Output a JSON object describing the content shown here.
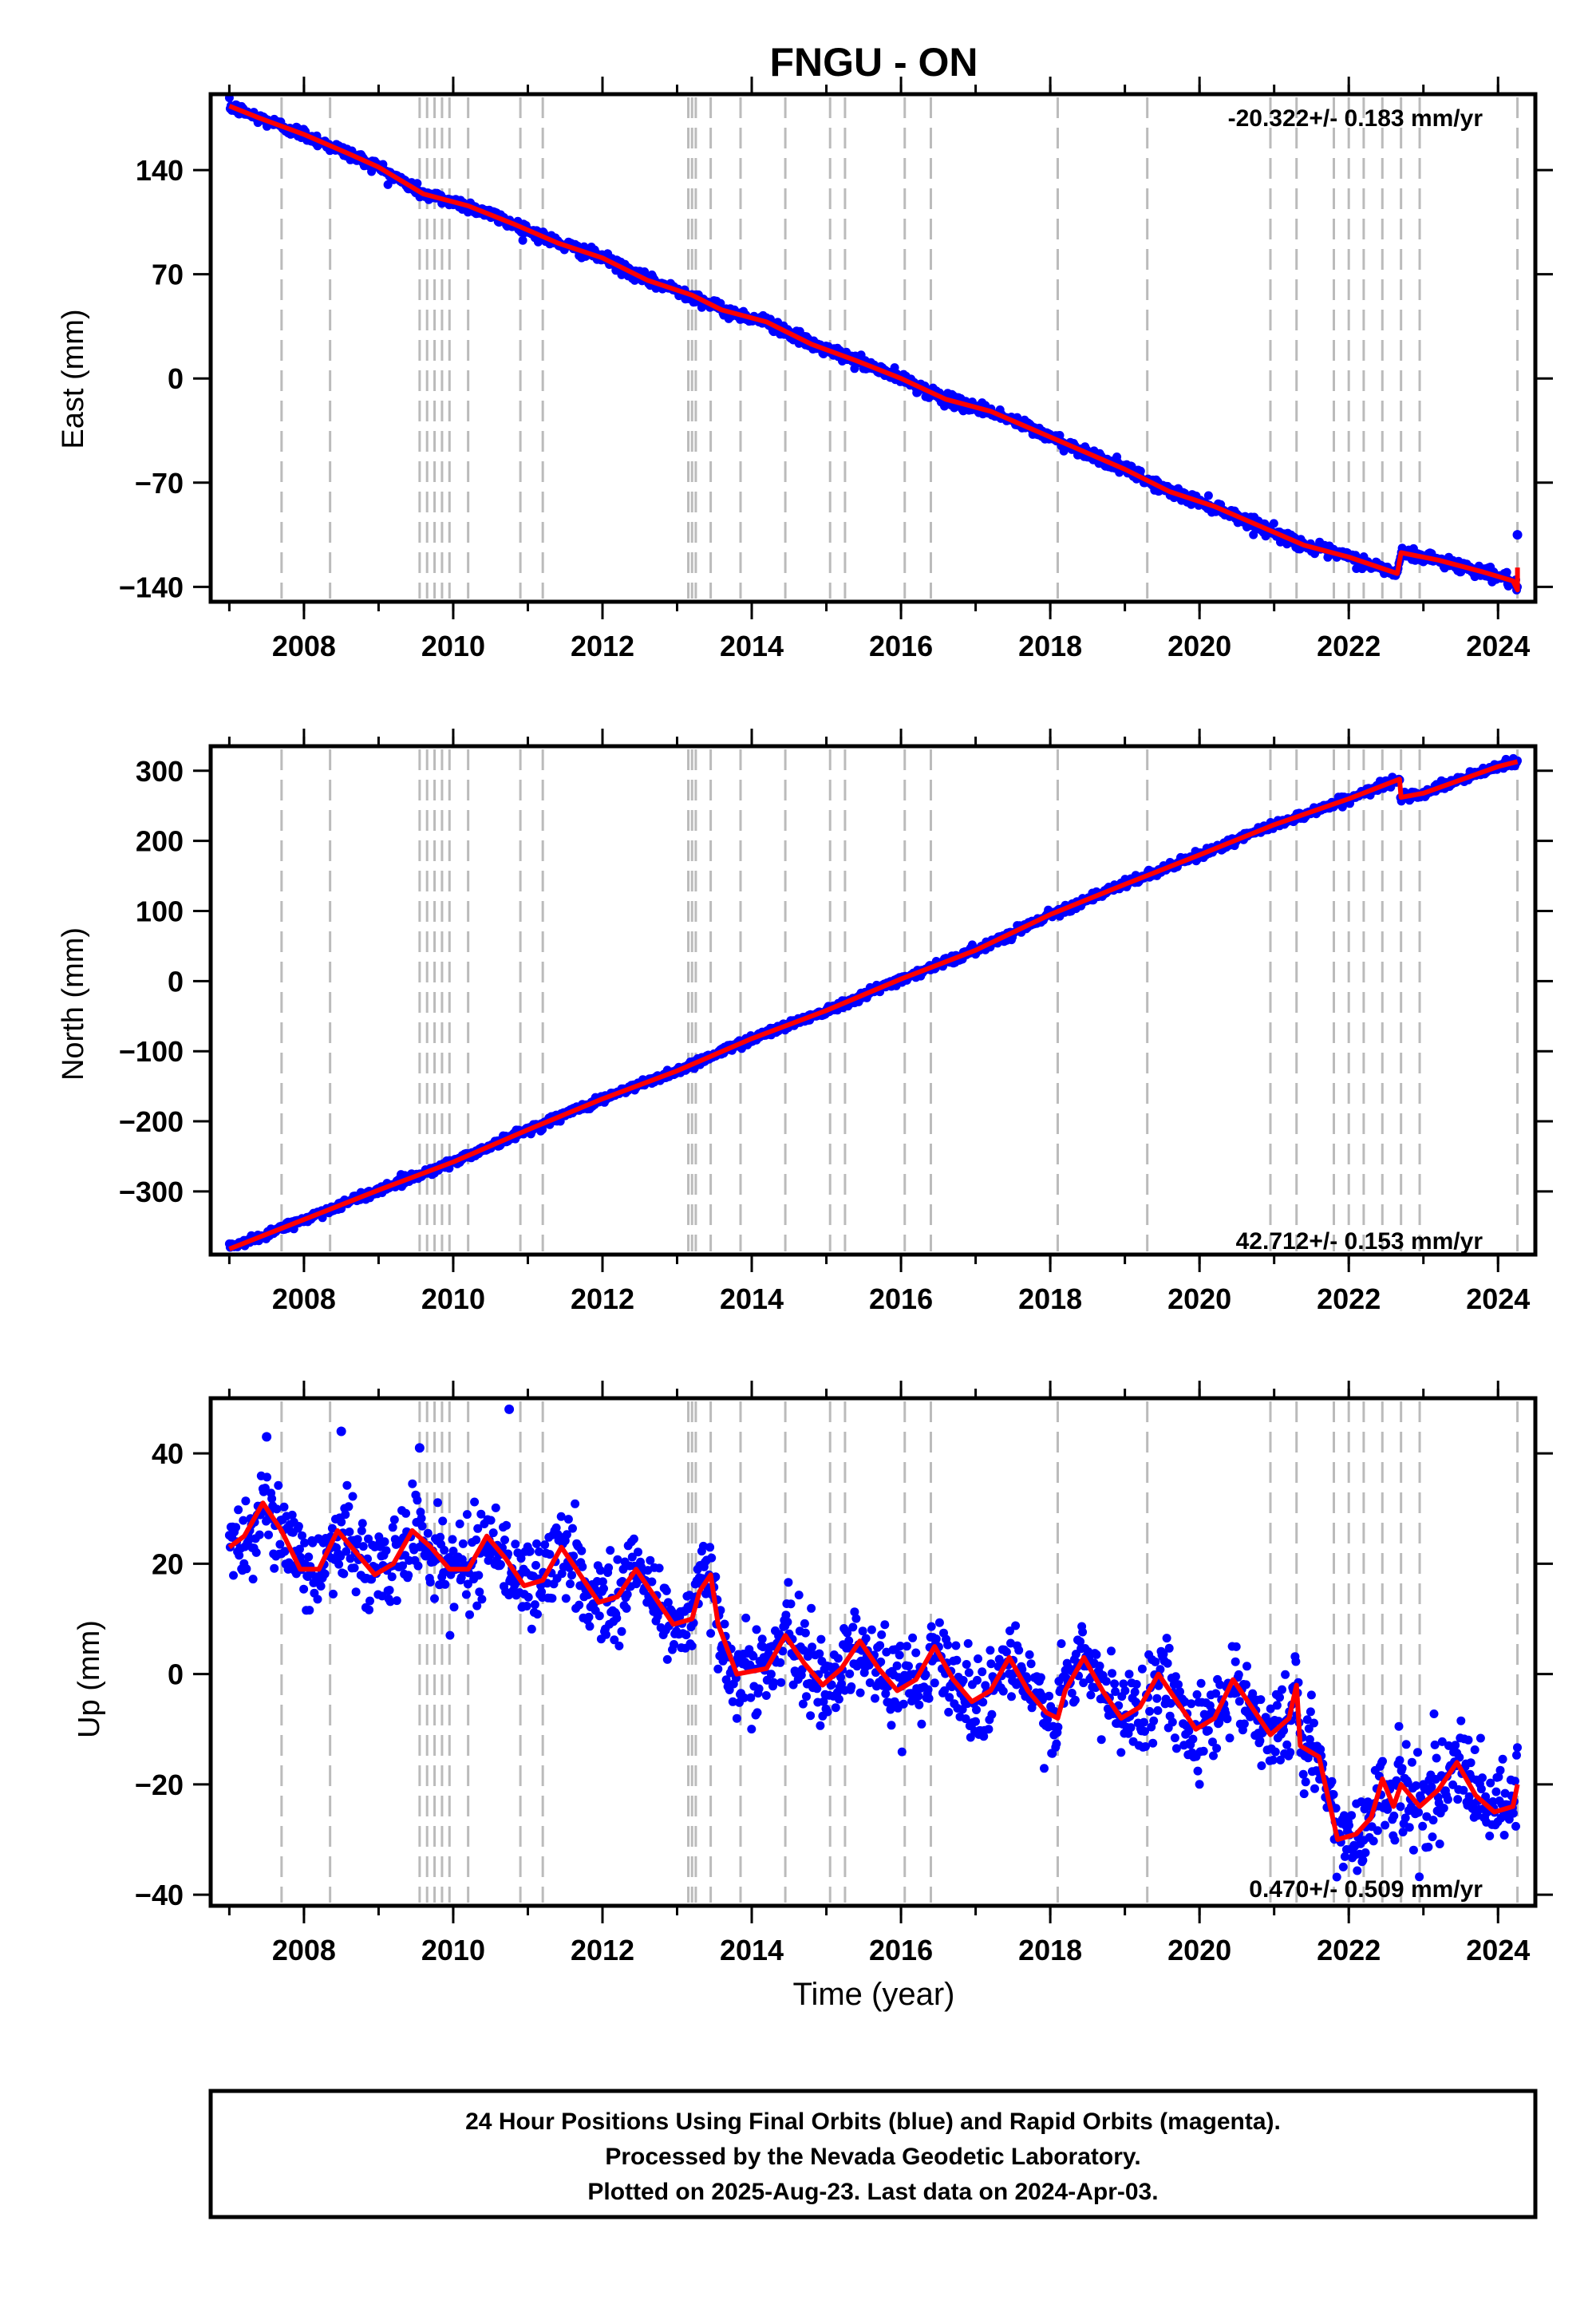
{
  "figure": {
    "title": "FNGU - ON",
    "xlabel": "Time (year)",
    "footer": [
      "24 Hour Positions Using Final Orbits (blue) and Rapid Orbits (magenta).",
      "Processed by the Nevada Geodetic Laboratory.",
      "Plotted on 2025-Aug-23. Last data on 2024-Apr-03."
    ]
  },
  "colors": {
    "data_points": "#0000ff",
    "model_line": "#ff0000",
    "event_lines": "#bbbbbb",
    "frame": "#000000"
  },
  "chart_data": [
    {
      "type": "scatter",
      "ylabel": "East (mm)",
      "rate_label": "-20.322+/- 0.183 mm/yr",
      "rate_position": "top-right",
      "xlim": [
        2006.75,
        2024.5
      ],
      "ylim": [
        -150,
        191
      ],
      "xticks": [
        2008,
        2010,
        2012,
        2014,
        2016,
        2018,
        2020,
        2022,
        2024
      ],
      "yticks": [
        -140,
        -70,
        0,
        70,
        140
      ],
      "ytick_labels": [
        "−140",
        "−70",
        "0",
        "70",
        "140"
      ],
      "trend": {
        "slope_mm_per_yr": -20.322,
        "y_at_2007": 182,
        "noise_mm": 2
      },
      "offsets": [
        {
          "x": 2022.7,
          "dy": 14
        },
        {
          "x": 2024.26,
          "dy": 15
        }
      ],
      "model_line": [
        [
          2007.0,
          183
        ],
        [
          2007.4,
          175
        ],
        [
          2008.0,
          164
        ],
        [
          2008.6,
          151
        ],
        [
          2009.0,
          142
        ],
        [
          2009.6,
          124
        ],
        [
          2010.2,
          116
        ],
        [
          2010.8,
          104
        ],
        [
          2011.4,
          91
        ],
        [
          2012.0,
          81
        ],
        [
          2012.6,
          66
        ],
        [
          2013.2,
          56
        ],
        [
          2013.6,
          46
        ],
        [
          2014.2,
          38
        ],
        [
          2014.8,
          23
        ],
        [
          2015.4,
          12
        ],
        [
          2016.0,
          0
        ],
        [
          2016.6,
          -14
        ],
        [
          2017.2,
          -22
        ],
        [
          2017.8,
          -35
        ],
        [
          2018.4,
          -48
        ],
        [
          2019.0,
          -61
        ],
        [
          2019.6,
          -76
        ],
        [
          2020.2,
          -86
        ],
        [
          2020.8,
          -99
        ],
        [
          2021.4,
          -112
        ],
        [
          2022.0,
          -120
        ],
        [
          2022.65,
          -131
        ],
        [
          2022.7,
          -117
        ],
        [
          2023.2,
          -122
        ],
        [
          2023.8,
          -130
        ],
        [
          2024.2,
          -136
        ],
        [
          2024.26,
          -142
        ],
        [
          2024.26,
          -127
        ]
      ],
      "outliers": [
        [
          2024.26,
          -105
        ]
      ]
    },
    {
      "type": "scatter",
      "ylabel": "North (mm)",
      "rate_label": "42.712+/- 0.153 mm/yr",
      "rate_position": "bottom-right",
      "xlim": [
        2006.75,
        2024.5
      ],
      "ylim": [
        -390,
        335
      ],
      "xticks": [
        2008,
        2010,
        2012,
        2014,
        2016,
        2018,
        2020,
        2022,
        2024
      ],
      "yticks": [
        -300,
        -200,
        -100,
        0,
        100,
        200,
        300
      ],
      "ytick_labels": [
        "−300",
        "−200",
        "−100",
        "0",
        "100",
        "200",
        "300"
      ],
      "trend": {
        "slope_mm_per_yr": 42.712,
        "y_at_2007": -382,
        "noise_mm": 3
      },
      "offsets": [
        {
          "x": 2022.7,
          "dy": -25
        }
      ],
      "model_line": [
        [
          2007.0,
          -382
        ],
        [
          2008.0,
          -340
        ],
        [
          2009.0,
          -298
        ],
        [
          2010.0,
          -258
        ],
        [
          2011.0,
          -212
        ],
        [
          2012.0,
          -168
        ],
        [
          2013.0,
          -128
        ],
        [
          2014.0,
          -82
        ],
        [
          2015.0,
          -42
        ],
        [
          2016.0,
          3
        ],
        [
          2017.0,
          44
        ],
        [
          2018.0,
          95
        ],
        [
          2019.0,
          138
        ],
        [
          2020.0,
          180
        ],
        [
          2021.0,
          223
        ],
        [
          2022.0,
          260
        ],
        [
          2022.68,
          288
        ],
        [
          2022.7,
          262
        ],
        [
          2023.0,
          268
        ],
        [
          2024.0,
          306
        ],
        [
          2024.26,
          313
        ]
      ],
      "outliers": []
    },
    {
      "type": "scatter",
      "ylabel": "Up (mm)",
      "rate_label": "0.470+/- 0.509 mm/yr",
      "rate_position": "bottom-right",
      "xlim": [
        2006.75,
        2024.5
      ],
      "ylim": [
        -42,
        50
      ],
      "xticks": [
        2008,
        2010,
        2012,
        2014,
        2016,
        2018,
        2020,
        2022,
        2024
      ],
      "yticks": [
        -40,
        -20,
        0,
        20,
        40
      ],
      "ytick_labels": [
        "−40",
        "−20",
        "0",
        "20",
        "40"
      ],
      "noise_mm": 4,
      "model_line": [
        [
          2007.0,
          23
        ],
        [
          2007.2,
          25
        ],
        [
          2007.45,
          31
        ],
        [
          2007.7,
          26
        ],
        [
          2007.95,
          19
        ],
        [
          2008.2,
          19
        ],
        [
          2008.45,
          26
        ],
        [
          2008.7,
          22
        ],
        [
          2008.95,
          18
        ],
        [
          2009.2,
          20
        ],
        [
          2009.45,
          26
        ],
        [
          2009.7,
          23
        ],
        [
          2009.95,
          19
        ],
        [
          2010.2,
          19
        ],
        [
          2010.45,
          25
        ],
        [
          2010.7,
          21
        ],
        [
          2010.95,
          16
        ],
        [
          2011.2,
          17
        ],
        [
          2011.45,
          23
        ],
        [
          2011.7,
          18
        ],
        [
          2011.95,
          13
        ],
        [
          2012.2,
          14
        ],
        [
          2012.45,
          19
        ],
        [
          2012.7,
          14
        ],
        [
          2012.95,
          9
        ],
        [
          2013.2,
          10
        ],
        [
          2013.3,
          15
        ],
        [
          2013.45,
          18
        ],
        [
          2013.55,
          9
        ],
        [
          2013.8,
          0
        ],
        [
          2014.2,
          1
        ],
        [
          2014.45,
          7
        ],
        [
          2014.7,
          2
        ],
        [
          2014.95,
          -2
        ],
        [
          2015.2,
          1
        ],
        [
          2015.45,
          6
        ],
        [
          2015.7,
          1
        ],
        [
          2015.95,
          -3
        ],
        [
          2016.2,
          -1
        ],
        [
          2016.45,
          5
        ],
        [
          2016.7,
          -1
        ],
        [
          2016.95,
          -5
        ],
        [
          2017.2,
          -3
        ],
        [
          2017.45,
          3
        ],
        [
          2017.7,
          -3
        ],
        [
          2017.95,
          -7
        ],
        [
          2018.1,
          -8
        ],
        [
          2018.2,
          -3
        ],
        [
          2018.45,
          3
        ],
        [
          2018.7,
          -3
        ],
        [
          2018.95,
          -8
        ],
        [
          2019.2,
          -6
        ],
        [
          2019.45,
          0
        ],
        [
          2019.7,
          -5
        ],
        [
          2019.95,
          -10
        ],
        [
          2020.2,
          -8
        ],
        [
          2020.45,
          -1
        ],
        [
          2020.7,
          -6
        ],
        [
          2020.95,
          -11
        ],
        [
          2021.2,
          -8
        ],
        [
          2021.3,
          -2
        ],
        [
          2021.35,
          -13
        ],
        [
          2021.6,
          -15
        ],
        [
          2021.85,
          -30
        ],
        [
          2022.1,
          -29
        ],
        [
          2022.3,
          -26
        ],
        [
          2022.45,
          -19
        ],
        [
          2022.6,
          -24
        ],
        [
          2022.7,
          -20
        ],
        [
          2022.95,
          -24
        ],
        [
          2023.2,
          -21
        ],
        [
          2023.45,
          -16
        ],
        [
          2023.7,
          -22
        ],
        [
          2023.95,
          -25
        ],
        [
          2024.2,
          -24
        ],
        [
          2024.26,
          -20
        ]
      ],
      "outliers": [
        [
          2010.75,
          48
        ],
        [
          2008.5,
          44
        ],
        [
          2007.5,
          43
        ],
        [
          2009.55,
          41
        ]
      ]
    }
  ],
  "event_lines": [
    2007.7,
    2008.35,
    2009.55,
    2009.65,
    2009.75,
    2009.85,
    2009.95,
    2010.2,
    2010.9,
    2011.2,
    2013.15,
    2013.2,
    2013.25,
    2013.45,
    2013.85,
    2014.45,
    2015.05,
    2015.25,
    2016.05,
    2016.4,
    2018.1,
    2019.3,
    2020.95,
    2021.3,
    2021.8,
    2022.0,
    2022.2,
    2022.45,
    2022.7,
    2022.95,
    2024.26
  ]
}
